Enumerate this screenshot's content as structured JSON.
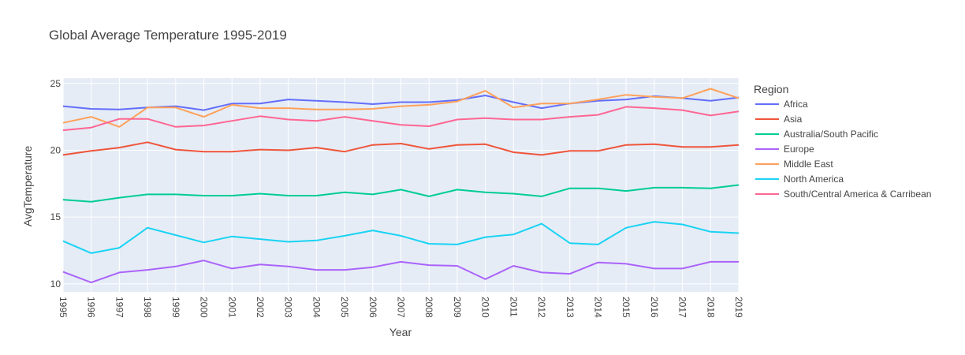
{
  "chart_data": {
    "type": "line",
    "title": "Global Average Temperature 1995-2019",
    "xlabel": "Year",
    "ylabel": "AvgTemperature",
    "x": [
      1995,
      1996,
      1997,
      1998,
      1999,
      2000,
      2001,
      2002,
      2003,
      2004,
      2005,
      2006,
      2007,
      2008,
      2009,
      2010,
      2011,
      2012,
      2013,
      2014,
      2015,
      2016,
      2017,
      2018,
      2019
    ],
    "xlim": [
      1995,
      2019
    ],
    "ylim": [
      9.4,
      25.4
    ],
    "yticks": [
      10,
      15,
      20,
      25
    ],
    "grid": true,
    "plot_background": "#E5ECF6",
    "legend": {
      "title": "Region",
      "position": "right"
    },
    "series": [
      {
        "name": "Africa",
        "color": "#636EFA",
        "values": [
          23.3,
          23.1,
          23.05,
          23.2,
          23.3,
          23.0,
          23.5,
          23.5,
          23.8,
          23.7,
          23.6,
          23.45,
          23.6,
          23.6,
          23.75,
          24.1,
          23.6,
          23.15,
          23.5,
          23.7,
          23.8,
          24.05,
          23.9,
          23.7,
          23.95
        ]
      },
      {
        "name": "Asia",
        "color": "#EF553B",
        "values": [
          19.65,
          19.95,
          20.2,
          20.6,
          20.05,
          19.9,
          19.9,
          20.05,
          20.0,
          20.2,
          19.9,
          20.4,
          20.5,
          20.1,
          20.4,
          20.45,
          19.85,
          19.65,
          19.95,
          19.95,
          20.4,
          20.45,
          20.25,
          20.25,
          20.4
        ]
      },
      {
        "name": "Australia/South Pacific",
        "color": "#00CC96",
        "values": [
          16.3,
          16.15,
          16.45,
          16.7,
          16.7,
          16.6,
          16.6,
          16.75,
          16.6,
          16.6,
          16.85,
          16.7,
          17.05,
          16.55,
          17.05,
          16.85,
          16.75,
          16.55,
          17.15,
          17.15,
          16.95,
          17.2,
          17.2,
          17.15,
          17.4
        ]
      },
      {
        "name": "Europe",
        "color": "#AB63FA",
        "values": [
          10.9,
          10.1,
          10.85,
          11.05,
          11.3,
          11.75,
          11.15,
          11.45,
          11.3,
          11.05,
          11.05,
          11.25,
          11.65,
          11.4,
          11.35,
          10.35,
          11.35,
          10.85,
          10.75,
          11.6,
          11.5,
          11.15,
          11.15,
          11.65,
          11.65
        ]
      },
      {
        "name": "Middle East",
        "color": "#FFA15A",
        "values": [
          22.05,
          22.5,
          21.75,
          23.2,
          23.2,
          22.5,
          23.4,
          23.15,
          23.15,
          23.05,
          23.05,
          23.1,
          23.3,
          23.4,
          23.65,
          24.45,
          23.2,
          23.5,
          23.5,
          23.8,
          24.15,
          24.0,
          23.9,
          24.6,
          23.9
        ]
      },
      {
        "name": "North America",
        "color": "#19D3F3",
        "values": [
          13.2,
          12.3,
          12.7,
          14.2,
          13.65,
          13.1,
          13.55,
          13.35,
          13.15,
          13.25,
          13.6,
          14.0,
          13.6,
          13.0,
          12.95,
          13.5,
          13.7,
          14.5,
          13.05,
          12.95,
          14.2,
          14.65,
          14.45,
          13.9,
          13.8
        ]
      },
      {
        "name": "South/Central America & Carribean",
        "color": "#FF6692",
        "values": [
          21.5,
          21.7,
          22.35,
          22.35,
          21.75,
          21.85,
          22.2,
          22.55,
          22.3,
          22.2,
          22.5,
          22.2,
          21.9,
          21.8,
          22.3,
          22.4,
          22.3,
          22.3,
          22.5,
          22.65,
          23.25,
          23.15,
          23.0,
          22.6,
          22.9
        ]
      }
    ]
  }
}
